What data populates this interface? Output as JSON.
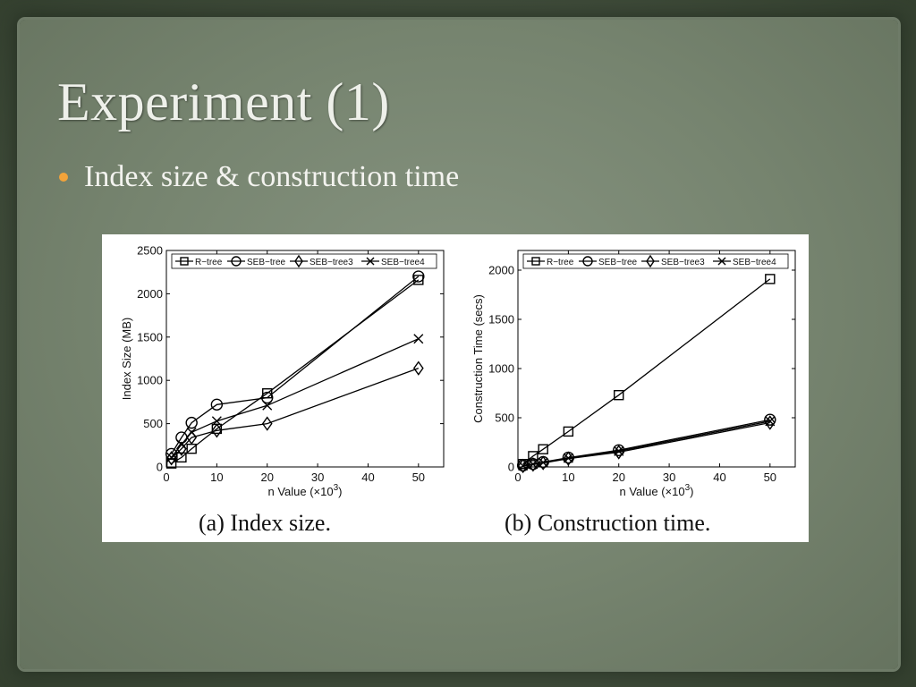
{
  "slide": {
    "title": "Experiment (1)",
    "bullet": "Index size & construction time"
  },
  "colors": {
    "bullet": "#f2a33a",
    "series": "#000000"
  },
  "chart_data": [
    {
      "type": "line",
      "caption": "(a) Index size.",
      "xlabel_main": "n Value (",
      "xlabel_exp": "3",
      "ylabel": "Index Size (MB)",
      "xlim": [
        0,
        55
      ],
      "ylim": [
        0,
        2500
      ],
      "xticks": [
        0,
        10,
        20,
        30,
        40,
        50
      ],
      "yticks": [
        0,
        500,
        1000,
        1500,
        2000,
        2500
      ],
      "legend_position": "top",
      "grid": false,
      "series": [
        {
          "name": "R−tree",
          "marker": "square",
          "x": [
            1,
            3,
            5,
            10,
            20,
            50
          ],
          "y": [
            40,
            110,
            210,
            440,
            850,
            2160
          ]
        },
        {
          "name": "SEB−tree",
          "marker": "circle",
          "x": [
            1,
            3,
            5,
            10,
            20,
            50
          ],
          "y": [
            150,
            340,
            510,
            720,
            800,
            2200
          ]
        },
        {
          "name": "SEB−tree3",
          "marker": "diamond",
          "x": [
            1,
            3,
            5,
            10,
            20,
            50
          ],
          "y": [
            100,
            210,
            340,
            420,
            500,
            1140
          ]
        },
        {
          "name": "SEB−tree4",
          "marker": "x",
          "x": [
            1,
            3,
            5,
            10,
            20,
            50
          ],
          "y": [
            110,
            260,
            400,
            530,
            710,
            1480
          ]
        }
      ]
    },
    {
      "type": "line",
      "caption": "(b) Construction time.",
      "xlabel_main": "n Value (",
      "xlabel_exp": "3",
      "ylabel": "Construction Time (secs)",
      "xlim": [
        0,
        55
      ],
      "ylim": [
        0,
        2200
      ],
      "xticks": [
        0,
        10,
        20,
        30,
        40,
        50
      ],
      "yticks": [
        0,
        500,
        1000,
        1500,
        2000
      ],
      "legend_position": "top",
      "grid": false,
      "series": [
        {
          "name": "R−tree",
          "marker": "square",
          "x": [
            1,
            3,
            5,
            10,
            20,
            50
          ],
          "y": [
            30,
            110,
            180,
            360,
            730,
            1910
          ]
        },
        {
          "name": "SEB−tree",
          "marker": "circle",
          "x": [
            1,
            3,
            5,
            10,
            20,
            50
          ],
          "y": [
            15,
            30,
            50,
            95,
            170,
            480
          ]
        },
        {
          "name": "SEB−tree3",
          "marker": "diamond",
          "x": [
            1,
            3,
            5,
            10,
            20,
            50
          ],
          "y": [
            10,
            25,
            40,
            85,
            150,
            450
          ]
        },
        {
          "name": "SEB−tree4",
          "marker": "x",
          "x": [
            1,
            3,
            5,
            10,
            20,
            50
          ],
          "y": [
            12,
            28,
            45,
            90,
            160,
            465
          ]
        }
      ]
    }
  ]
}
